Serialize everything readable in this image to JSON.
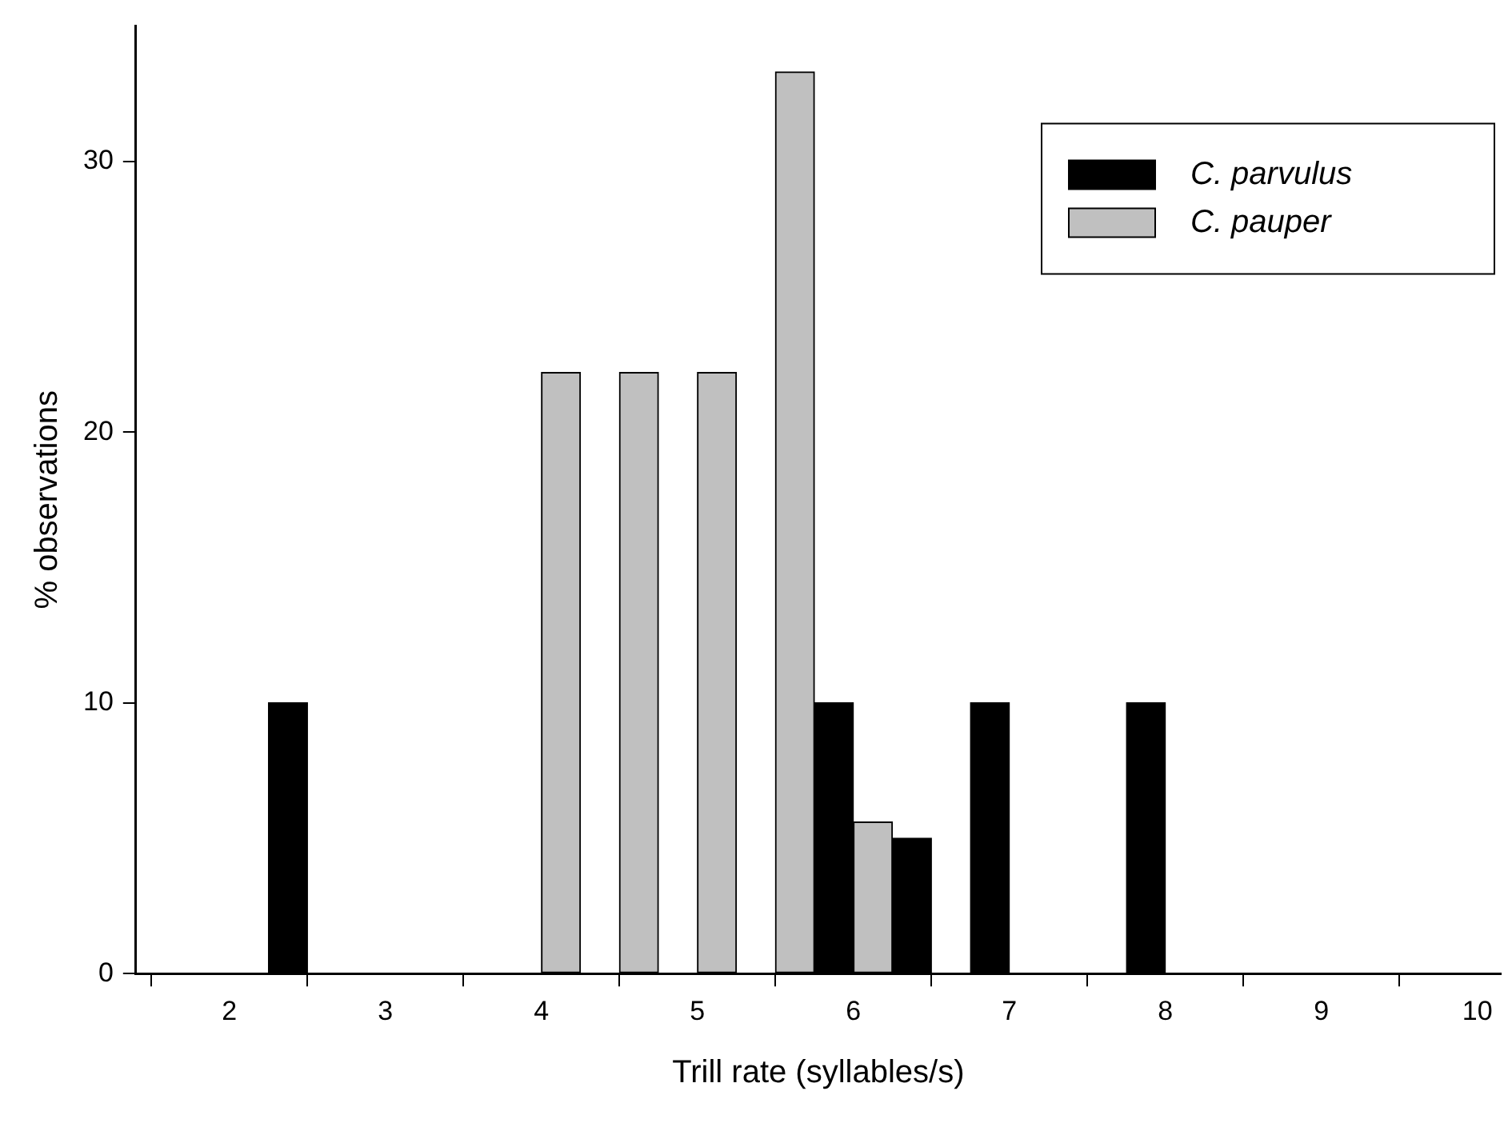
{
  "chart_data": {
    "type": "bar",
    "xlabel": "Trill rate (syllables/s)",
    "ylabel": "% observations",
    "series": [
      {
        "name": "C. parvulus",
        "color": "#000000",
        "x": [
          2.375,
          5.875,
          6.375,
          6.875,
          7.875
        ],
        "values": [
          10,
          10,
          5,
          10,
          10
        ]
      },
      {
        "name": "C. pauper",
        "color": "#c0c0c0",
        "x": [
          4.125,
          4.625,
          5.125,
          5.625,
          6.125
        ],
        "values": [
          22.2,
          22.2,
          22.2,
          33.3,
          5.6
        ]
      }
    ],
    "xlim": [
      1.4,
      10.15
    ],
    "xticks": [
      2,
      3,
      4,
      5,
      6,
      7,
      8,
      9,
      10
    ],
    "ylim": [
      0,
      35
    ],
    "yticks": [
      0,
      10,
      20,
      30
    ],
    "grid": false,
    "legend": "top right"
  }
}
